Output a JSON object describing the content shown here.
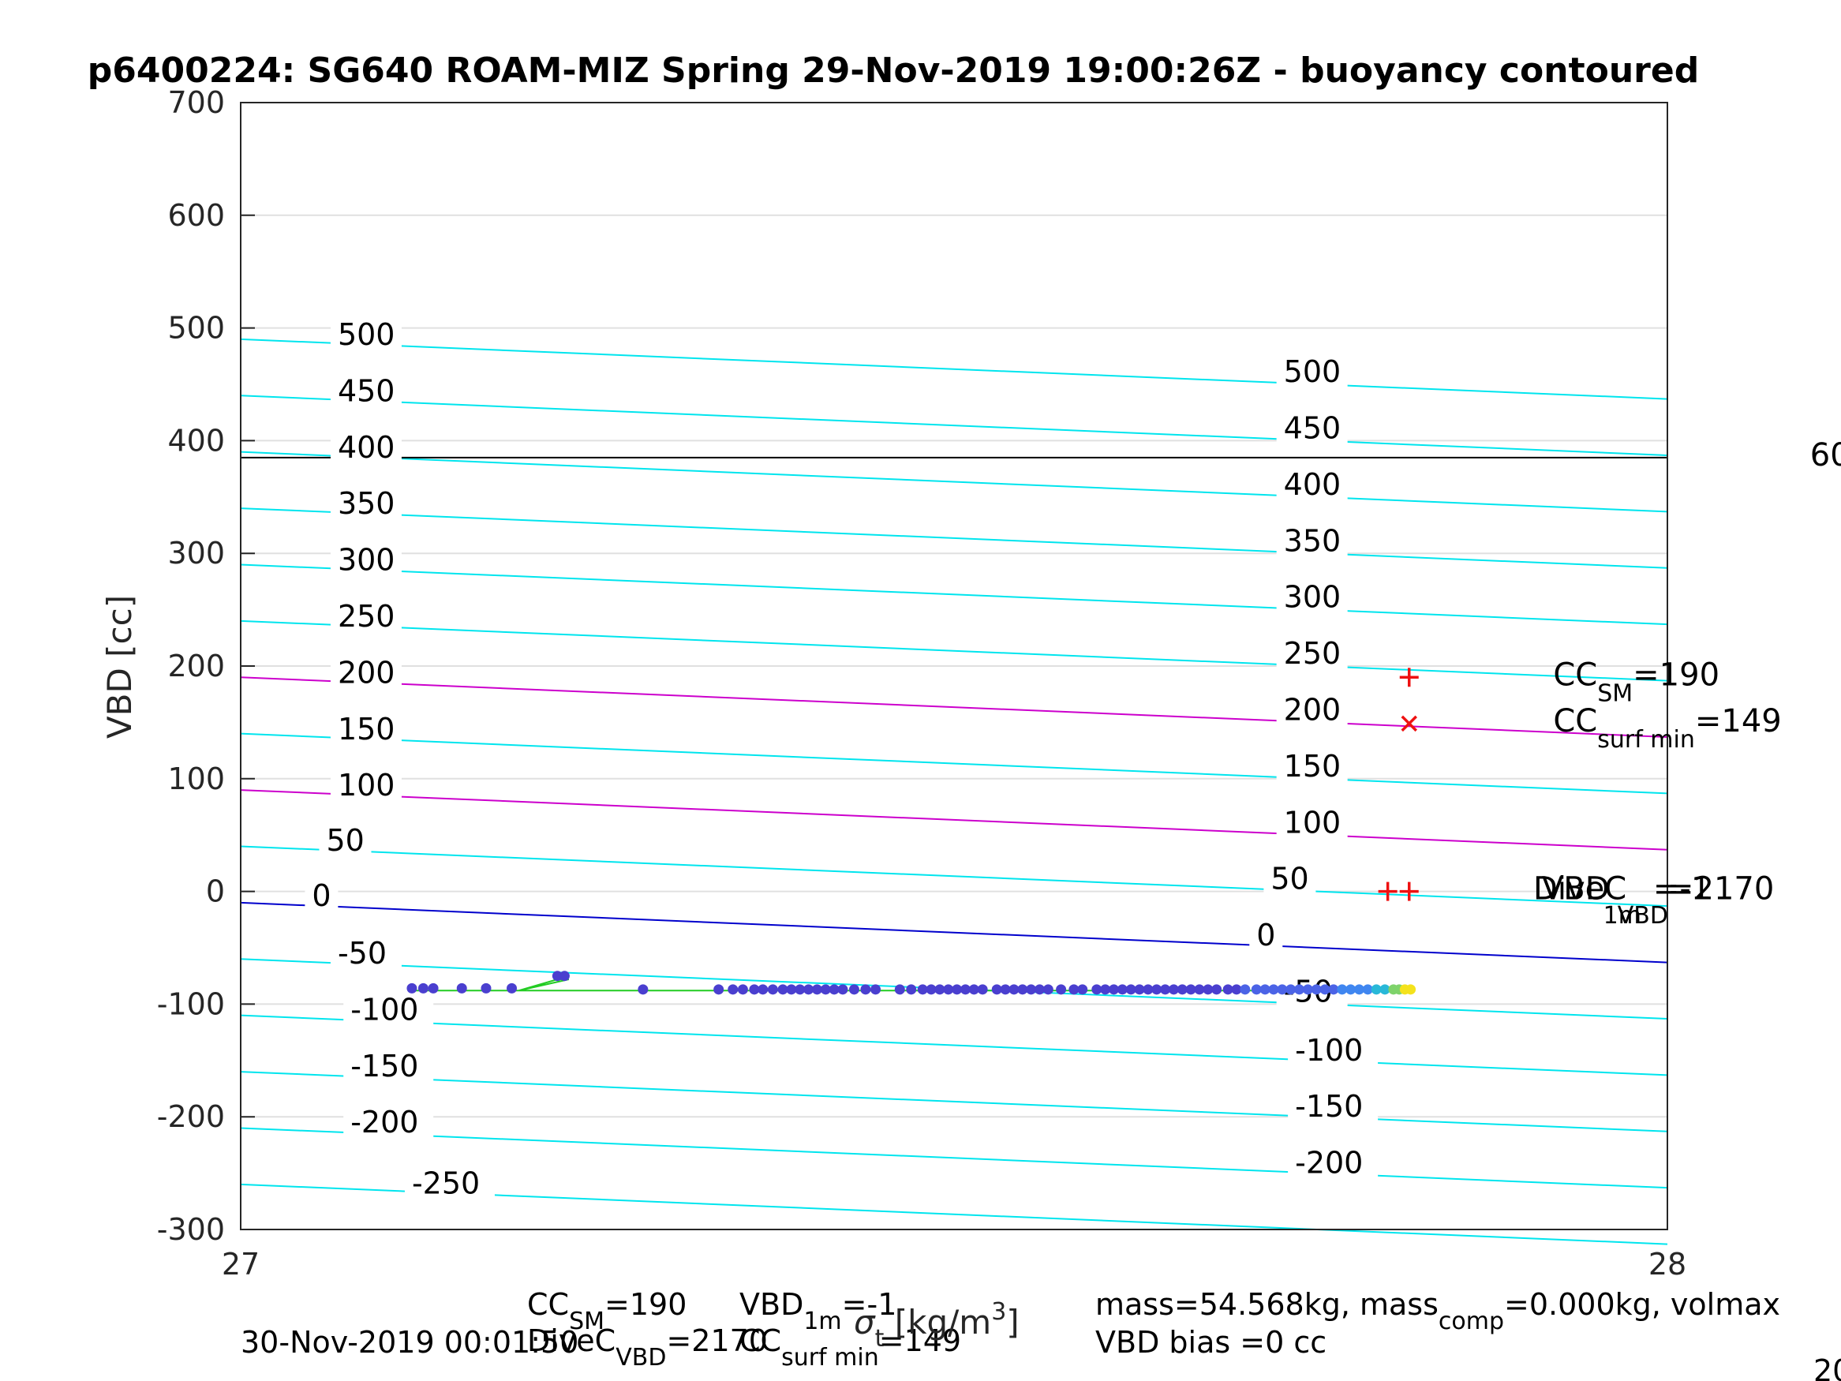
{
  "chart_data": {
    "type": "scatter",
    "title": "p6400224: SG640 ROAM-MIZ Spring 29-Nov-2019 19:00:26Z - buoyancy contoured",
    "ylabel": "VBD [cc]",
    "xlim": [
      27,
      28
    ],
    "ylim": [
      -300,
      700
    ],
    "x_ticks": [
      "27",
      "28"
    ],
    "y_ticks": [
      "-300",
      "-200",
      "-100",
      "0",
      "100",
      "200",
      "300",
      "400",
      "500",
      "600",
      "700"
    ],
    "grid": true,
    "contour_colors": {
      "default": "#00e5ee",
      "highlight": "#cc00cc",
      "zero": "#0000cc",
      "threshold": "#000000",
      "data_line": "#22cc22",
      "marker": "#ee1111"
    },
    "contours": [
      {
        "level": 500,
        "y_left": 490,
        "y_right": 437,
        "kind": "default"
      },
      {
        "level": 450,
        "y_left": 440,
        "y_right": 387,
        "kind": "default"
      },
      {
        "level": 400,
        "y_left": 390,
        "y_right": 337,
        "kind": "default"
      },
      {
        "level": 350,
        "y_left": 340,
        "y_right": 287,
        "kind": "default"
      },
      {
        "level": 300,
        "y_left": 290,
        "y_right": 237,
        "kind": "default"
      },
      {
        "level": 250,
        "y_left": 240,
        "y_right": 187,
        "kind": "default"
      },
      {
        "level": 200,
        "y_left": 190,
        "y_right": 137,
        "kind": "highlight"
      },
      {
        "level": 150,
        "y_left": 140,
        "y_right": 87,
        "kind": "default"
      },
      {
        "level": 100,
        "y_left": 90,
        "y_right": 37,
        "kind": "highlight"
      },
      {
        "level": 50,
        "y_left": 40,
        "y_right": -13,
        "kind": "default"
      },
      {
        "level": 0,
        "y_left": -10,
        "y_right": -63,
        "kind": "zero"
      },
      {
        "level": -50,
        "y_left": -60,
        "y_right": -113,
        "kind": "default"
      },
      {
        "level": -100,
        "y_left": -110,
        "y_right": -163,
        "kind": "default"
      },
      {
        "level": -150,
        "y_left": -160,
        "y_right": -213,
        "kind": "default"
      },
      {
        "level": -200,
        "y_left": -210,
        "y_right": -263,
        "kind": "default"
      },
      {
        "level": -250,
        "y_left": -260,
        "y_right": -313,
        "kind": "default"
      }
    ],
    "contour_labels_left": [
      {
        "text": "500",
        "x": 27.068,
        "y": 485
      },
      {
        "text": "450",
        "x": 27.068,
        "y": 435
      },
      {
        "text": "400",
        "x": 27.068,
        "y": 385
      },
      {
        "text": "350",
        "x": 27.068,
        "y": 335
      },
      {
        "text": "300",
        "x": 27.068,
        "y": 285
      },
      {
        "text": "250",
        "x": 27.068,
        "y": 235
      },
      {
        "text": "200",
        "x": 27.068,
        "y": 185
      },
      {
        "text": "150",
        "x": 27.068,
        "y": 135
      },
      {
        "text": "100",
        "x": 27.068,
        "y": 85
      },
      {
        "text": "50",
        "x": 27.06,
        "y": 36
      },
      {
        "text": "0",
        "x": 27.05,
        "y": -13
      },
      {
        "text": "-50",
        "x": 27.068,
        "y": -64
      },
      {
        "text": "-100",
        "x": 27.077,
        "y": -114
      },
      {
        "text": "-150",
        "x": 27.077,
        "y": -164
      },
      {
        "text": "-200",
        "x": 27.077,
        "y": -214
      },
      {
        "text": "-250",
        "x": 27.12,
        "y": -268
      }
    ],
    "contour_labels_right": [
      {
        "text": "500",
        "x": 27.731,
        "y": 452
      },
      {
        "text": "450",
        "x": 27.731,
        "y": 402
      },
      {
        "text": "400",
        "x": 27.731,
        "y": 352
      },
      {
        "text": "350",
        "x": 27.731,
        "y": 302
      },
      {
        "text": "300",
        "x": 27.731,
        "y": 252
      },
      {
        "text": "250",
        "x": 27.731,
        "y": 202
      },
      {
        "text": "200",
        "x": 27.731,
        "y": 152
      },
      {
        "text": "150",
        "x": 27.731,
        "y": 102
      },
      {
        "text": "100",
        "x": 27.731,
        "y": 52
      },
      {
        "text": "50",
        "x": 27.722,
        "y": 2
      },
      {
        "text": "0",
        "x": 27.712,
        "y": -48
      },
      {
        "text": "-50",
        "x": 27.731,
        "y": -98
      },
      {
        "text": "-100",
        "x": 27.739,
        "y": -150
      },
      {
        "text": "-150",
        "x": 27.739,
        "y": -200
      },
      {
        "text": "-200",
        "x": 27.739,
        "y": -250
      }
    ],
    "threshold_line": {
      "y": 385
    },
    "data_line": [
      [
        27.12,
        -88
      ],
      [
        27.195,
        -88
      ],
      [
        27.222,
        -78
      ],
      [
        27.23,
        -78
      ],
      [
        27.195,
        -88
      ],
      [
        27.82,
        -88
      ]
    ],
    "points": [
      {
        "x": 27.12,
        "y": -86
      },
      {
        "x": 27.128,
        "y": -86
      },
      {
        "x": 27.135,
        "y": -86
      },
      {
        "x": 27.155,
        "y": -86
      },
      {
        "x": 27.172,
        "y": -86
      },
      {
        "x": 27.19,
        "y": -86
      },
      {
        "x": 27.222,
        "y": -75
      },
      {
        "x": 27.227,
        "y": -75
      },
      {
        "x": 27.282,
        "y": -87
      },
      {
        "x": 27.335,
        "y": -87
      },
      {
        "x": 27.345,
        "y": -87
      },
      {
        "x": 27.352,
        "y": -87
      },
      {
        "x": 27.36,
        "y": -87
      },
      {
        "x": 27.366,
        "y": -87
      },
      {
        "x": 27.373,
        "y": -87
      },
      {
        "x": 27.38,
        "y": -87
      },
      {
        "x": 27.386,
        "y": -87
      },
      {
        "x": 27.392,
        "y": -87
      },
      {
        "x": 27.398,
        "y": -87
      },
      {
        "x": 27.404,
        "y": -87
      },
      {
        "x": 27.41,
        "y": -87
      },
      {
        "x": 27.416,
        "y": -87
      },
      {
        "x": 27.422,
        "y": -87
      },
      {
        "x": 27.43,
        "y": -87
      },
      {
        "x": 27.438,
        "y": -87
      },
      {
        "x": 27.445,
        "y": -87
      },
      {
        "x": 27.462,
        "y": -87
      },
      {
        "x": 27.47,
        "y": -87
      },
      {
        "x": 27.478,
        "y": -87
      },
      {
        "x": 27.484,
        "y": -87
      },
      {
        "x": 27.49,
        "y": -87
      },
      {
        "x": 27.496,
        "y": -87
      },
      {
        "x": 27.502,
        "y": -87
      },
      {
        "x": 27.508,
        "y": -87
      },
      {
        "x": 27.514,
        "y": -87
      },
      {
        "x": 27.52,
        "y": -87
      },
      {
        "x": 27.53,
        "y": -87
      },
      {
        "x": 27.536,
        "y": -87
      },
      {
        "x": 27.542,
        "y": -87
      },
      {
        "x": 27.548,
        "y": -87
      },
      {
        "x": 27.554,
        "y": -87
      },
      {
        "x": 27.56,
        "y": -87
      },
      {
        "x": 27.566,
        "y": -87
      },
      {
        "x": 27.575,
        "y": -87
      },
      {
        "x": 27.584,
        "y": -87
      },
      {
        "x": 27.59,
        "y": -87
      },
      {
        "x": 27.6,
        "y": -87
      },
      {
        "x": 27.606,
        "y": -87
      },
      {
        "x": 27.612,
        "y": -87
      },
      {
        "x": 27.618,
        "y": -87
      },
      {
        "x": 27.624,
        "y": -87
      },
      {
        "x": 27.63,
        "y": -87
      },
      {
        "x": 27.636,
        "y": -87
      },
      {
        "x": 27.642,
        "y": -87
      },
      {
        "x": 27.648,
        "y": -87
      },
      {
        "x": 27.654,
        "y": -87
      },
      {
        "x": 27.66,
        "y": -87
      },
      {
        "x": 27.666,
        "y": -87
      },
      {
        "x": 27.672,
        "y": -87
      },
      {
        "x": 27.678,
        "y": -87
      },
      {
        "x": 27.684,
        "y": -87
      },
      {
        "x": 27.692,
        "y": -87
      },
      {
        "x": 27.698,
        "y": -87
      },
      {
        "x": 27.704,
        "y": -87
      },
      {
        "x": 27.712,
        "y": -87
      },
      {
        "x": 27.718,
        "y": -87
      },
      {
        "x": 27.724,
        "y": -87
      },
      {
        "x": 27.73,
        "y": -87
      },
      {
        "x": 27.736,
        "y": -87
      },
      {
        "x": 27.742,
        "y": -87
      },
      {
        "x": 27.748,
        "y": -87
      },
      {
        "x": 27.754,
        "y": -87
      },
      {
        "x": 27.76,
        "y": -87
      },
      {
        "x": 27.766,
        "y": -87
      },
      {
        "x": 27.772,
        "y": -87
      },
      {
        "x": 27.778,
        "y": -87
      },
      {
        "x": 27.784,
        "y": -87
      },
      {
        "x": 27.79,
        "y": -87
      },
      {
        "x": 27.796,
        "y": -87
      },
      {
        "x": 27.802,
        "y": -87
      },
      {
        "x": 27.808,
        "y": -87
      },
      {
        "x": 27.812,
        "y": -87
      },
      {
        "x": 27.816,
        "y": -87
      },
      {
        "x": 27.82,
        "y": -87
      }
    ],
    "markers": [
      {
        "symbol": "+",
        "x": 27.819,
        "y": 190
      },
      {
        "symbol": "x",
        "x": 27.819,
        "y": 149
      },
      {
        "symbol": "+",
        "x": 27.804,
        "y": 0
      },
      {
        "symbol": "+",
        "x": 27.819,
        "y": 0
      }
    ],
    "annotations": {
      "cc_sm": {
        "base": "CC",
        "sub": "SM",
        "rest": "=190",
        "x": 27.92,
        "y": 190
      },
      "cc_surf_min": {
        "base": "CC",
        "sub": "surf min",
        "rest": "=149",
        "x": 27.92,
        "y": 149
      },
      "divec_over": {
        "text": "DiveC",
        "x": 27.906,
        "y": 0
      },
      "vbd_over": {
        "text": "VBD",
        "x": 27.912,
        "y": 0
      },
      "sub_1m_over": {
        "text": "1m",
        "x": 27.955,
        "y": -13
      },
      "sub_vbd_over": {
        "text": "VBD",
        "x": 27.965,
        "y": -13
      },
      "minus1_over": {
        "text": "=-1",
        "x": 27.99,
        "y": 0
      },
      "val_2170_over": {
        "text": "=2170",
        "x": 28.0,
        "y": 0
      },
      "edge_600": {
        "text": "60",
        "x": 28.1,
        "y": 385
      }
    },
    "footer": {
      "line1_left": {
        "base": "CC",
        "sub": "SM",
        "rest": "=190"
      },
      "line1_mid": {
        "base": "VBD",
        "sub": "1m",
        "rest": "=-1"
      },
      "line2_left": {
        "base": "DiveC",
        "sub": "VBD",
        "rest": "=2170"
      },
      "line2_mid": {
        "base": "CC",
        "sub": "surf min",
        "rest": "=149"
      },
      "timestamp": "30-Nov-2019 00:01:50",
      "xlabel_sigma": "σ",
      "xlabel_sub": "t",
      "xlabel_unit": "[kg/m",
      "xlabel_sup": "3",
      "xlabel_close": "]",
      "mass_line": {
        "pre": "mass=54.568kg, mass",
        "sub": "comp",
        "rest": "=0.000kg, volmax"
      },
      "bias_line": "VBD bias =0 cc",
      "corner_num": "20"
    }
  }
}
